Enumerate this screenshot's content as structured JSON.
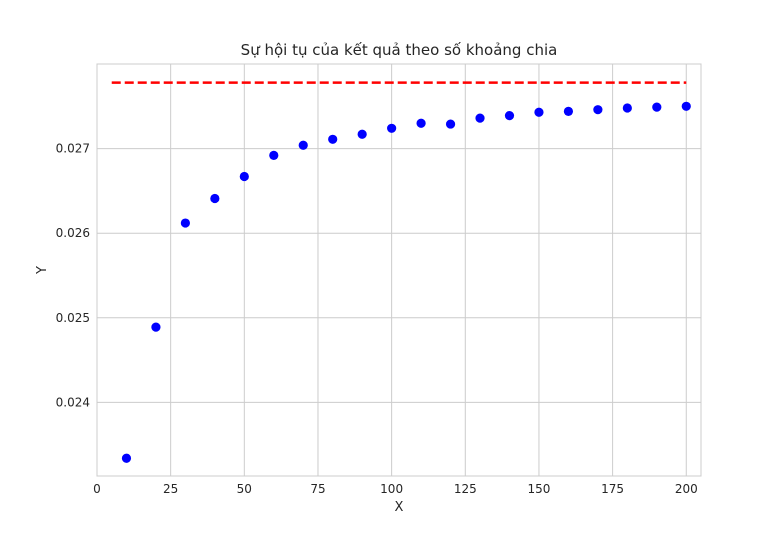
{
  "chart_data": {
    "type": "scatter",
    "title": "Sự hội tụ của kết quả theo số khoảng chia",
    "xlabel": "X",
    "ylabel": "Y",
    "xlim": [
      0,
      205
    ],
    "ylim": [
      0.02313,
      0.028
    ],
    "xticks": [
      0,
      25,
      50,
      75,
      100,
      125,
      150,
      175,
      200
    ],
    "xtick_labels": [
      "0",
      "25",
      "50",
      "75",
      "100",
      "125",
      "150",
      "175",
      "200"
    ],
    "yticks": [
      0.024,
      0.025,
      0.026,
      0.027
    ],
    "ytick_labels": [
      "0.024",
      "0.025",
      "0.026",
      "0.027"
    ],
    "grid": true,
    "series": [
      {
        "type": "scatter",
        "color": "#0000ff",
        "x": [
          10,
          20,
          30,
          40,
          50,
          60,
          70,
          80,
          90,
          100,
          110,
          120,
          130,
          140,
          150,
          160,
          170,
          180,
          190,
          200
        ],
        "y": [
          0.02334,
          0.02489,
          0.02612,
          0.02641,
          0.02667,
          0.02692,
          0.02704,
          0.02711,
          0.02717,
          0.02724,
          0.0273,
          0.02729,
          0.02736,
          0.02739,
          0.02743,
          0.02744,
          0.02746,
          0.02748,
          0.02749,
          0.0275
        ]
      },
      {
        "type": "line",
        "style": "dashed",
        "color": "#ff0000",
        "x": [
          5,
          200
        ],
        "y": [
          0.02778,
          0.02778
        ]
      }
    ]
  }
}
